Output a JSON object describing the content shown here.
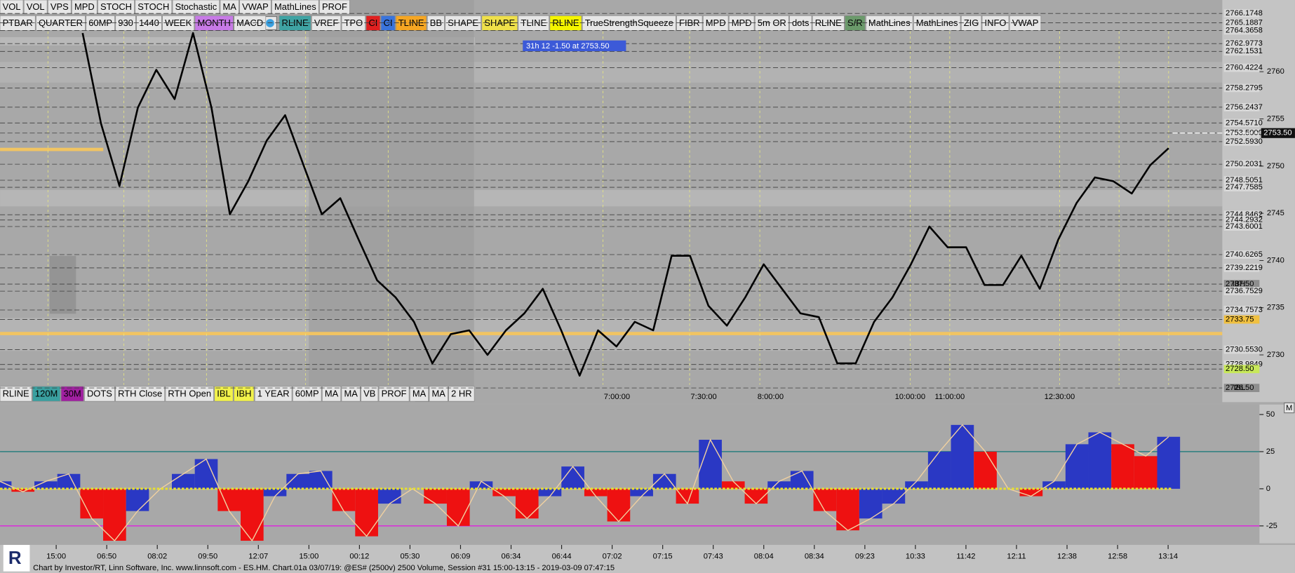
{
  "toolbar_top": [
    {
      "label": "VOL"
    },
    {
      "label": "VOL"
    },
    {
      "label": "VPS"
    },
    {
      "label": "MPD"
    },
    {
      "label": "STOCH"
    },
    {
      "label": "STOCH"
    },
    {
      "label": "Stochastic"
    },
    {
      "label": "MA"
    },
    {
      "label": "VWAP"
    },
    {
      "label": "MathLines"
    },
    {
      "label": "PROF"
    }
  ],
  "toolbar_main_left": [
    {
      "label": "PTBAR"
    },
    {
      "label": "QUARTER"
    },
    {
      "label": "60MP"
    },
    {
      "label": "930"
    },
    {
      "label": "1440"
    },
    {
      "label": "WEEK"
    },
    {
      "label": "MONTH",
      "bg": "#c77ae6"
    },
    {
      "label": "MACD"
    }
  ],
  "toolbar_main_right": [
    {
      "label": "RLINE",
      "bg": "#3fa3a3"
    },
    {
      "label": "VREF"
    },
    {
      "label": "TPO"
    },
    {
      "label": "CI",
      "bg": "#e02020"
    },
    {
      "label": "CI",
      "bg": "#3a74dc"
    },
    {
      "label": "TLINE",
      "bg": "#f5a623"
    },
    {
      "label": "BB"
    },
    {
      "label": "SHAPE"
    },
    {
      "label": "SHAPE",
      "bg": "#efe04a"
    },
    {
      "label": "TLINE"
    },
    {
      "label": "RLINE",
      "bg": "#f4f400"
    },
    {
      "label": "TrueStrengthSqueeze"
    },
    {
      "label": "FIBR"
    },
    {
      "label": "MPD"
    },
    {
      "label": "MPD"
    },
    {
      "label": "5m OR"
    },
    {
      "label": "dots"
    },
    {
      "label": "RLINE"
    },
    {
      "label": "S/R",
      "bg": "#6b9a6b"
    },
    {
      "label": "MathLines"
    },
    {
      "label": "MathLines"
    },
    {
      "label": "ZIG"
    },
    {
      "label": "INFO"
    },
    {
      "label": "VWAP"
    }
  ],
  "toolbar_bottom": [
    {
      "label": "RLINE"
    },
    {
      "label": "120M",
      "bg": "#3aa0a0"
    },
    {
      "label": "30M",
      "bg": "#a020a0"
    },
    {
      "label": "DOTS"
    },
    {
      "label": "RTH Close"
    },
    {
      "label": "RTH Open"
    },
    {
      "label": "IBL",
      "bg": "#f2f24a"
    },
    {
      "label": "IBH",
      "bg": "#f2f24a"
    },
    {
      "label": "1 YEAR"
    },
    {
      "label": "60MP"
    },
    {
      "label": "MA"
    },
    {
      "label": "MA"
    },
    {
      "label": "VB"
    },
    {
      "label": "PROF"
    },
    {
      "label": "MA"
    },
    {
      "label": "MA"
    },
    {
      "label": "2 HR"
    }
  ],
  "info_box": "31h 12  -1.50 at 2753.50",
  "price_chart": {
    "type": "line",
    "color": "#000000",
    "values": [
      2764.1,
      2754.5,
      2747.9,
      2756.2,
      2760.2,
      2757.1,
      2764.1,
      2756.2,
      2744.9,
      2748.4,
      2752.7,
      2755.4,
      2750.1,
      2744.9,
      2746.6,
      2742.2,
      2737.9,
      2736.1,
      2733.5,
      2729.1,
      2732.2,
      2732.6,
      2730.0,
      2732.6,
      2734.4,
      2737.0,
      2732.6,
      2727.8,
      2732.6,
      2730.9,
      2733.5,
      2732.6,
      2740.5,
      2740.5,
      2735.2,
      2733.1,
      2736.1,
      2739.6,
      2737.0,
      2734.4,
      2734.0,
      2729.1,
      2729.1,
      2733.5,
      2736.1,
      2739.6,
      2743.6,
      2741.4,
      2741.4,
      2737.4,
      2737.4,
      2740.5,
      2737.0,
      2742.2,
      2746.1,
      2748.8,
      2748.4,
      2747.1,
      2750.1,
      2751.9
    ],
    "ylim": [
      2725,
      2767.6
    ],
    "yticks": [
      2730,
      2735,
      2740,
      2745,
      2750,
      2755,
      2760
    ],
    "levels": [
      {
        "value": 2766.1748
      },
      {
        "value": 2765.1887
      },
      {
        "value": 2764.3658
      },
      {
        "value": 2762.9773
      },
      {
        "value": 2762.1531
      },
      {
        "value": 2760.4224
      },
      {
        "value": 2758.2795
      },
      {
        "value": 2756.2437
      },
      {
        "value": 2754.571,
        "label": "2754.5710"
      },
      {
        "value": 2753.5,
        "label": "2753.5000"
      },
      {
        "value": 2752.593,
        "label": "2752.5930"
      },
      {
        "value": 2750.2031
      },
      {
        "value": 2748.5051
      },
      {
        "value": 2747.7585
      },
      {
        "value": 2744.8462
      },
      {
        "value": 2744.2932
      },
      {
        "value": 2743.6001
      },
      {
        "value": 2740.6265
      },
      {
        "value": 2739.2219
      },
      {
        "value": 2737.5,
        "label": "2737.50",
        "tag": "IBH",
        "bg": "#8e8e8e"
      },
      {
        "value": 2736.7529
      },
      {
        "value": 2734.7573
      },
      {
        "value": 2733.75,
        "bg": "#f0c040"
      },
      {
        "value": 2730.553,
        "label": "2730.5530"
      },
      {
        "value": 2728.9849
      },
      {
        "value": 2728.5,
        "label": "2728.50",
        "bg": "#c8e85a"
      },
      {
        "value": 2726.5,
        "label": "2726.50",
        "tag": "IBL",
        "bg": "#8e8e8e"
      }
    ],
    "current_price": {
      "value": 2753.5,
      "label": "2753.50"
    },
    "time_labels": [
      "7:00:00",
      "7:30:00",
      "8:00:00",
      "10:00:00",
      "11:00:00",
      "12:30:00"
    ]
  },
  "oscillator": {
    "type": "bar",
    "up_color": "#2a38c4",
    "down_color": "#ee1111",
    "values": [
      5,
      -2,
      5,
      10,
      -20,
      -35,
      -15,
      0,
      10,
      20,
      -15,
      -35,
      -5,
      10,
      12,
      -15,
      -32,
      -10,
      0,
      -10,
      -25,
      5,
      -5,
      -20,
      -5,
      15,
      -5,
      -22,
      -5,
      10,
      -10,
      33,
      5,
      -10,
      5,
      12,
      -15,
      -28,
      -20,
      -10,
      5,
      25,
      43,
      25,
      0,
      -5,
      5,
      30,
      38,
      30,
      22,
      35
    ],
    "ylim": [
      -36.7,
      56.7
    ],
    "yticks": [
      -25,
      0,
      25,
      50
    ],
    "button": "M"
  },
  "x_axis_labels": [
    "15:00",
    "06:50",
    "08:02",
    "09:50",
    "12:07",
    "15:00",
    "00:12",
    "05:30",
    "06:09",
    "06:34",
    "06:44",
    "07:02",
    "07:15",
    "07:43",
    "08:04",
    "08:34",
    "09:23",
    "10:33",
    "11:42",
    "12:11",
    "12:38",
    "12:58",
    "13:14"
  ],
  "footer": "Chart by Investor/RT, Linn Software, Inc. www.linnsoft.com - ES.HM. Chart.01a  03/07/19: @ES# (2500v) 2500 Volume, Session #31 15:00-13:15 - 2019-03-09 07:47:15"
}
